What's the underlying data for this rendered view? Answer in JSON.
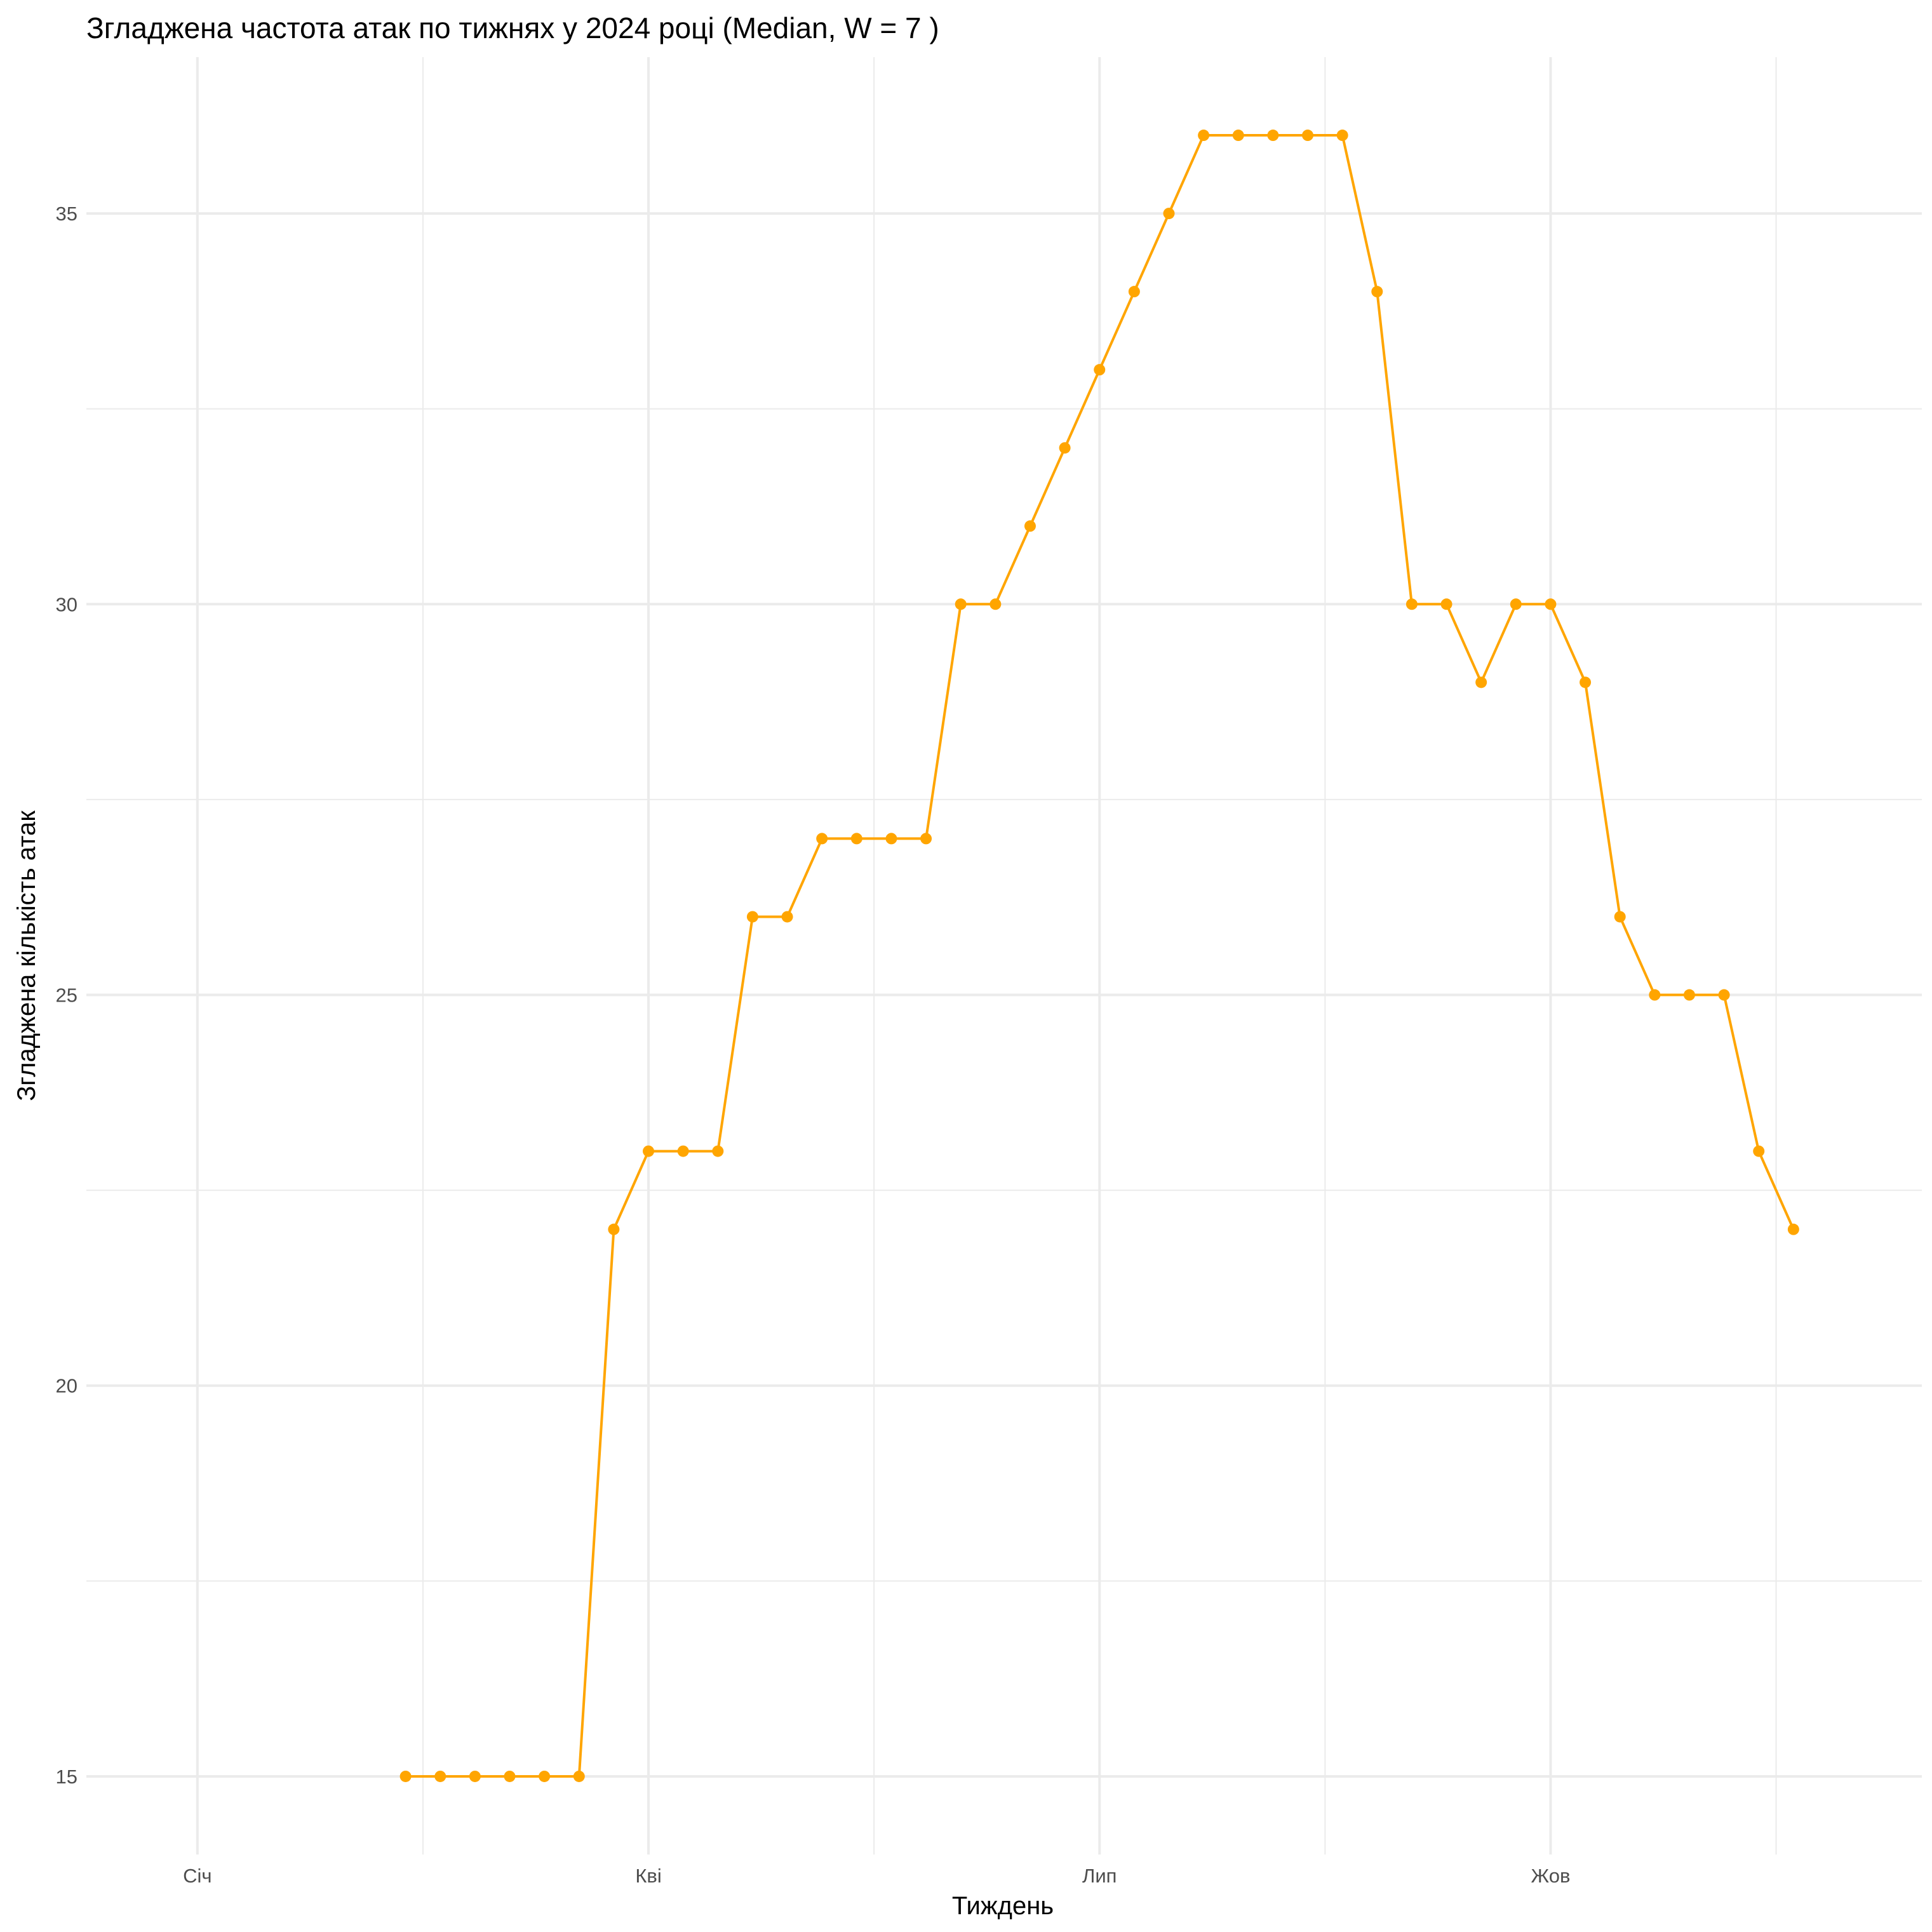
{
  "chart_data": {
    "type": "line",
    "title": "Згладжена частота атак по тижнях у 2024 році (Median, W = 7 )",
    "xlabel": "Тиждень",
    "ylabel": "Згладжена кількість атак",
    "color": "#FFA500",
    "x_ticks": [
      {
        "label": "Січ",
        "week": 1
      },
      {
        "label": "Кві",
        "week": 14
      },
      {
        "label": "Лип",
        "week": 27
      },
      {
        "label": "Жов",
        "week": 40
      }
    ],
    "y_ticks": [
      15,
      20,
      25,
      30,
      35
    ],
    "xlim": [
      -2.2,
      50.7
    ],
    "ylim": [
      14.0,
      37.0
    ],
    "series": [
      {
        "name": "Median, W = 7",
        "weeks": [
          7,
          8,
          9,
          10,
          11,
          12,
          13,
          14,
          15,
          16,
          17,
          18,
          19,
          20,
          21,
          22,
          23,
          24,
          25,
          26,
          27,
          28,
          29,
          30,
          31,
          32,
          33,
          34,
          35,
          36,
          37,
          38,
          39,
          40,
          41,
          42,
          43,
          44,
          45,
          46,
          47
        ],
        "values": [
          15,
          15,
          15,
          15,
          15,
          15,
          22,
          23,
          23,
          23,
          26,
          26,
          27,
          27,
          27,
          27,
          30,
          30,
          31,
          32,
          33,
          34,
          35,
          36,
          36,
          36,
          36,
          36,
          34,
          30,
          30,
          29,
          30,
          30,
          29,
          26,
          25,
          25,
          25,
          23,
          22
        ]
      }
    ]
  }
}
